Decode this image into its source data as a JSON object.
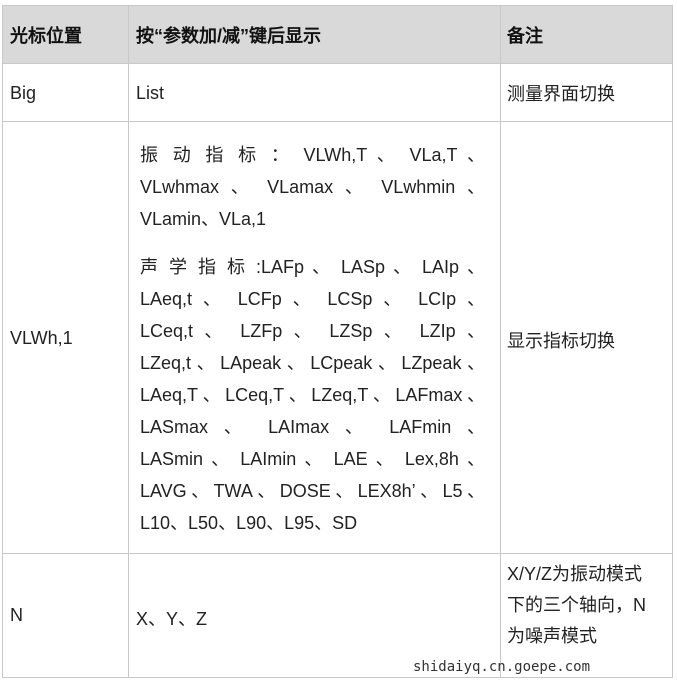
{
  "header": {
    "col1": "光标位置",
    "col2": "按“参数加/减”键后显示",
    "col3": "备注"
  },
  "rows": [
    {
      "cursor": "Big",
      "display": "List",
      "note": "测量界面切换"
    },
    {
      "cursor": "VLWh,1",
      "vibration_lines": [
        "振 动 指 标 ： VLWh,T 、 VLa,T 、",
        "VLwhmax 、 VLamax 、 VLwhmin 、",
        "VLamin、VLa,1"
      ],
      "acoustic_lines": [
        "声 学 指 标 :LAFp 、 LASp 、 LAIp 、",
        "LAeq,t 、 LCFp 、 LCSp 、 LCIp 、",
        "LCeq,t 、 LZFp 、 LZSp 、 LZIp 、",
        "LZeq,t、LApeak、LCpeak、LZpeak、",
        "LAeq,T、LCeq,T、LZeq,T、LAFmax、",
        "LASmax 、 LAImax 、 LAFmin 、",
        "LASmin 、 LAImin 、 LAE 、 Lex,8h 、",
        "LAVG、TWA、DOSE、LEX8h’、L5、",
        "L10、L50、L90、L95、SD"
      ],
      "note": "显示指标切换"
    },
    {
      "cursor": "N",
      "display": "X、Y、Z",
      "note_lines": [
        "X/Y/Z为振动模式",
        "下的三个轴向，N",
        "为噪声模式"
      ]
    }
  ],
  "watermark": "shidaiyq.cn.goepe.com"
}
